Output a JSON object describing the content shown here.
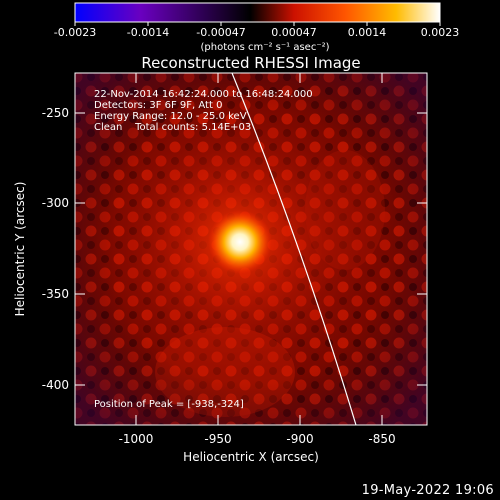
{
  "colorbar": {
    "colors": [
      "#0000ff",
      "#6a00c0",
      "#000000",
      "#cc1100",
      "#ff5500",
      "#ffbb00",
      "#ffffff"
    ],
    "ticks": [
      "-0.0023",
      "-0.0014",
      "-0.00047",
      "0.00047",
      "0.0014",
      "0.0023"
    ],
    "unit_label": "(photons cm⁻² s⁻¹ asec⁻²)"
  },
  "plot": {
    "title": "Reconstructed RHESSI Image",
    "info_lines": [
      "22-Nov-2014 16:42:24.000 to 16:48:24.000",
      "Detectors: 3F 6F 9F, Att 0",
      "Energy Range: 12.0 - 25.0 keV",
      "Clean    Total counts: 5.14E+03"
    ],
    "peak_label": "Position of Peak = [-938,-324]",
    "xlabel": "Heliocentric X (arcsec)",
    "ylabel": "Heliocentric Y (arcsec)",
    "x_ticks": [
      "-1000",
      "-950",
      "-900",
      "-850"
    ],
    "y_ticks": [
      "-250",
      "-300",
      "-350",
      "-400"
    ]
  },
  "footer": {
    "date": "19-May-2022 19:06"
  }
}
